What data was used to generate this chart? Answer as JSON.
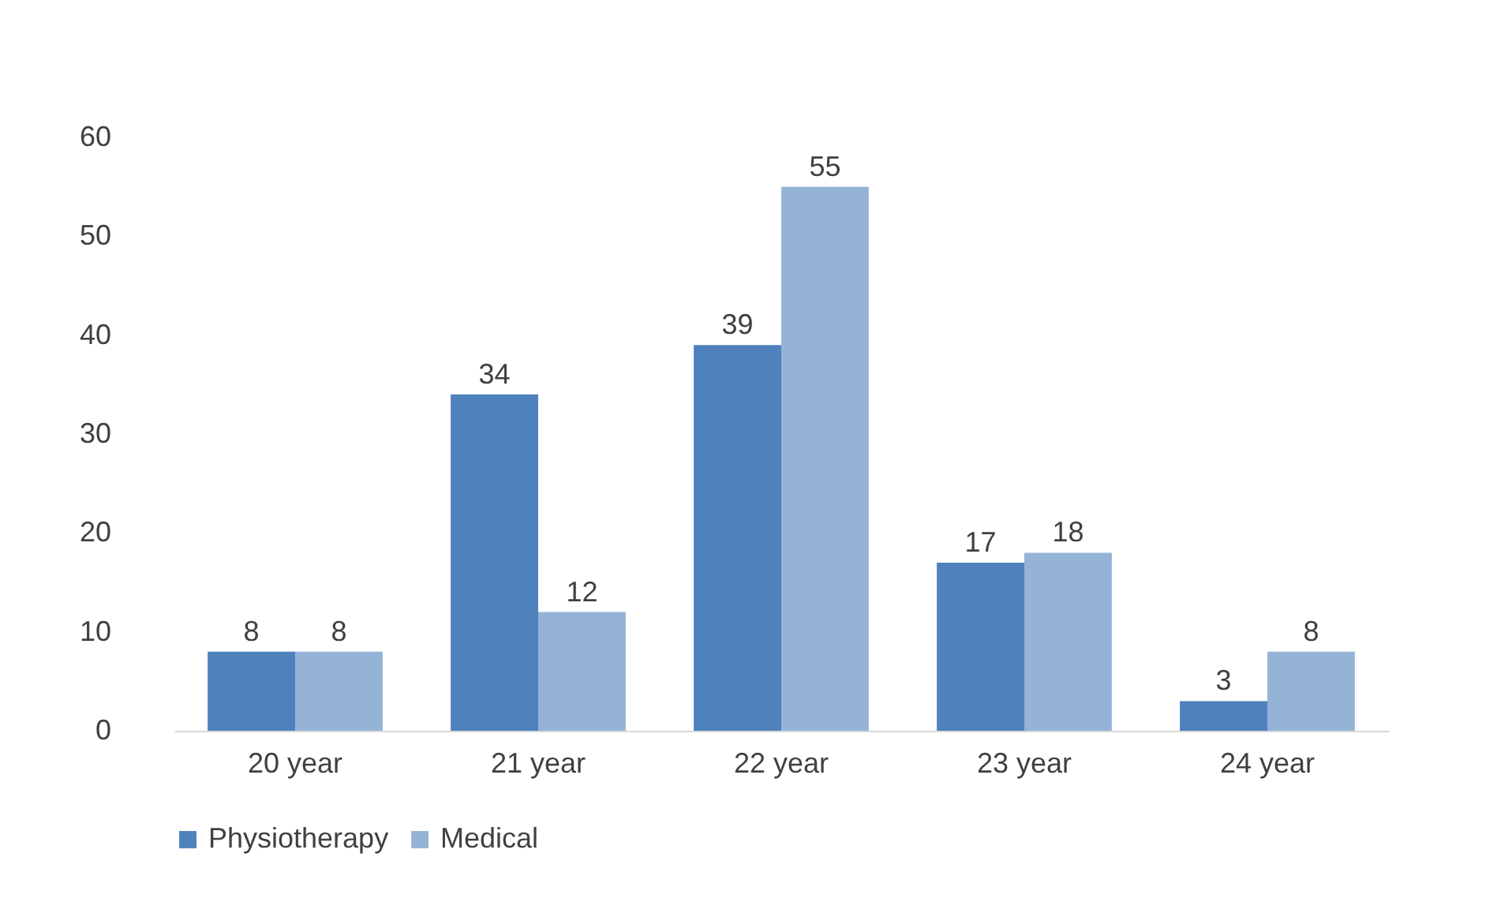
{
  "chart_data": {
    "type": "bar",
    "categories": [
      "20 year",
      "21 year",
      "22 year",
      "23 year",
      "24 year"
    ],
    "series": [
      {
        "name": "Physiotherapy",
        "color": "#4f81bd",
        "values": [
          8,
          34,
          39,
          17,
          3
        ]
      },
      {
        "name": "Medical",
        "color": "#95b3d7",
        "values": [
          8,
          12,
          55,
          18,
          8
        ]
      }
    ],
    "ylim": [
      0,
      60
    ],
    "yticks": [
      0,
      10,
      20,
      30,
      40,
      50,
      60
    ],
    "data_labels": true,
    "legend": "bottom"
  }
}
